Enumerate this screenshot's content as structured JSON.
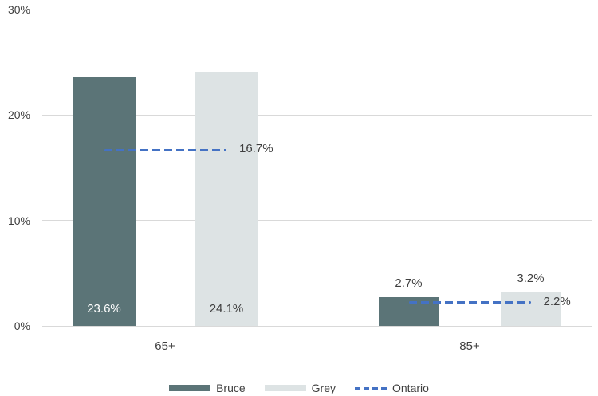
{
  "chart_data": {
    "type": "bar",
    "title": "",
    "categories": [
      "65+",
      "85+"
    ],
    "series": [
      {
        "name": "Bruce",
        "type": "bar",
        "color": "#5b7477",
        "values": [
          23.6,
          2.7
        ],
        "value_labels": [
          "23.6%",
          "2.7%"
        ],
        "inside_label_color": "#ffffff"
      },
      {
        "name": "Grey",
        "type": "bar",
        "color": "#dde3e4",
        "values": [
          24.1,
          3.2
        ],
        "value_labels": [
          "24.1%",
          "3.2%"
        ],
        "inside_label_color": "#3f3f3f"
      },
      {
        "name": "Ontario",
        "type": "dashed-reference-line",
        "color": "#4472c4",
        "values": [
          16.7,
          2.2
        ],
        "value_labels": [
          "16.7%",
          "2.2%"
        ]
      }
    ],
    "ylim": [
      0,
      30
    ],
    "yticks": [
      30,
      20,
      10,
      0
    ],
    "ytick_labels": [
      "30%",
      "20%",
      "10%",
      "0%"
    ],
    "xlabel": "",
    "ylabel": "",
    "grid": true,
    "legend_position": "bottom",
    "legend": [
      "Bruce",
      "Grey",
      "Ontario"
    ]
  },
  "colors": {
    "background": "#ffffff",
    "gridline": "#d9d9d9",
    "axis_text": "#404040",
    "value_label_text": "#3f3f3f"
  }
}
